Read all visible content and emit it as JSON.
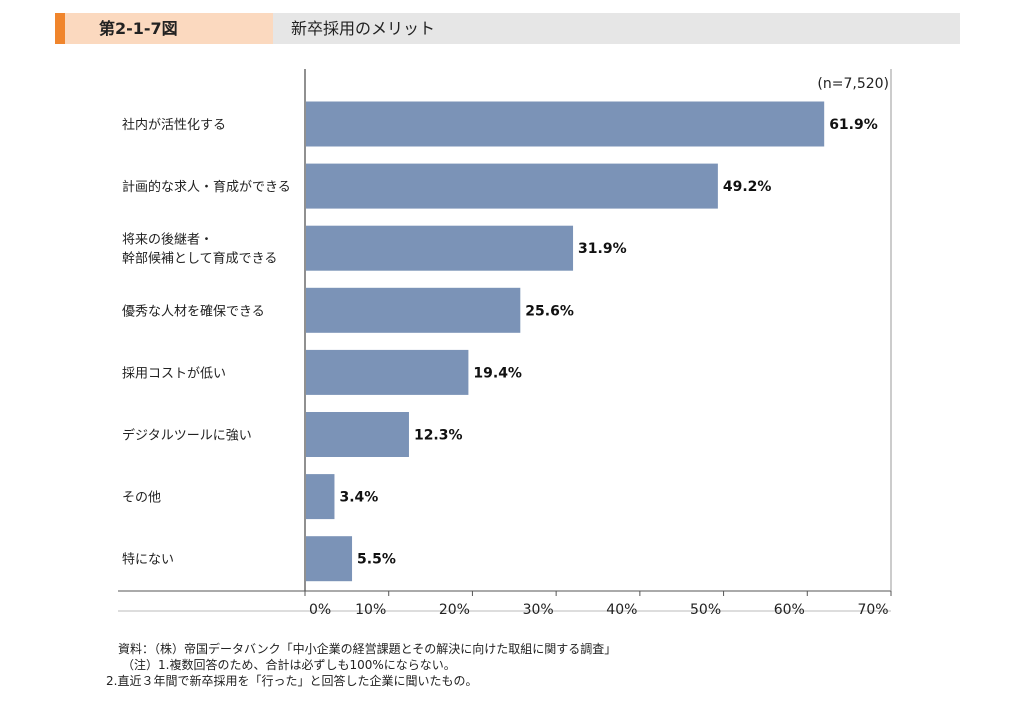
{
  "header": {
    "figure_number": "第2-1-7図",
    "title": "新卒採用のメリット"
  },
  "colors": {
    "accent": "#f0852c",
    "figure_number_bg": "#fbd9bf",
    "header_bg": "#e6e6e6",
    "bar": "#7b93b7"
  },
  "chart_data": {
    "type": "bar",
    "orientation": "horizontal",
    "sample_note": "(n=7,520)",
    "categories": [
      [
        "社内が活性化する"
      ],
      [
        "計画的な求人・育成ができる"
      ],
      [
        "将来の後継者・",
        "幹部候補として育成できる"
      ],
      [
        "優秀な人材を確保できる"
      ],
      [
        "採用コストが低い"
      ],
      [
        "デジタルツールに強い"
      ],
      [
        "その他"
      ],
      [
        "特にない"
      ]
    ],
    "values": [
      61.9,
      49.2,
      31.9,
      25.6,
      19.4,
      12.3,
      3.4,
      5.5
    ],
    "data_labels": [
      "61.9%",
      "49.2%",
      "31.9%",
      "25.6%",
      "19.4%",
      "12.3%",
      "3.4%",
      "5.5%"
    ],
    "xlim": [
      0,
      70
    ],
    "x_ticks": [
      "0%",
      "10%",
      "20%",
      "30%",
      "40%",
      "50%",
      "60%",
      "70%"
    ],
    "grid": false
  },
  "notes": [
    "資料：（株）帝国データバンク「中小企業の経営課題とその解決に向けた取組に関する調査」",
    "（注）1.複数回答のため、合計は必ずしも100%にならない。",
    "2.直近３年間で新卒採用を「行った」と回答した企業に聞いたもの。"
  ]
}
